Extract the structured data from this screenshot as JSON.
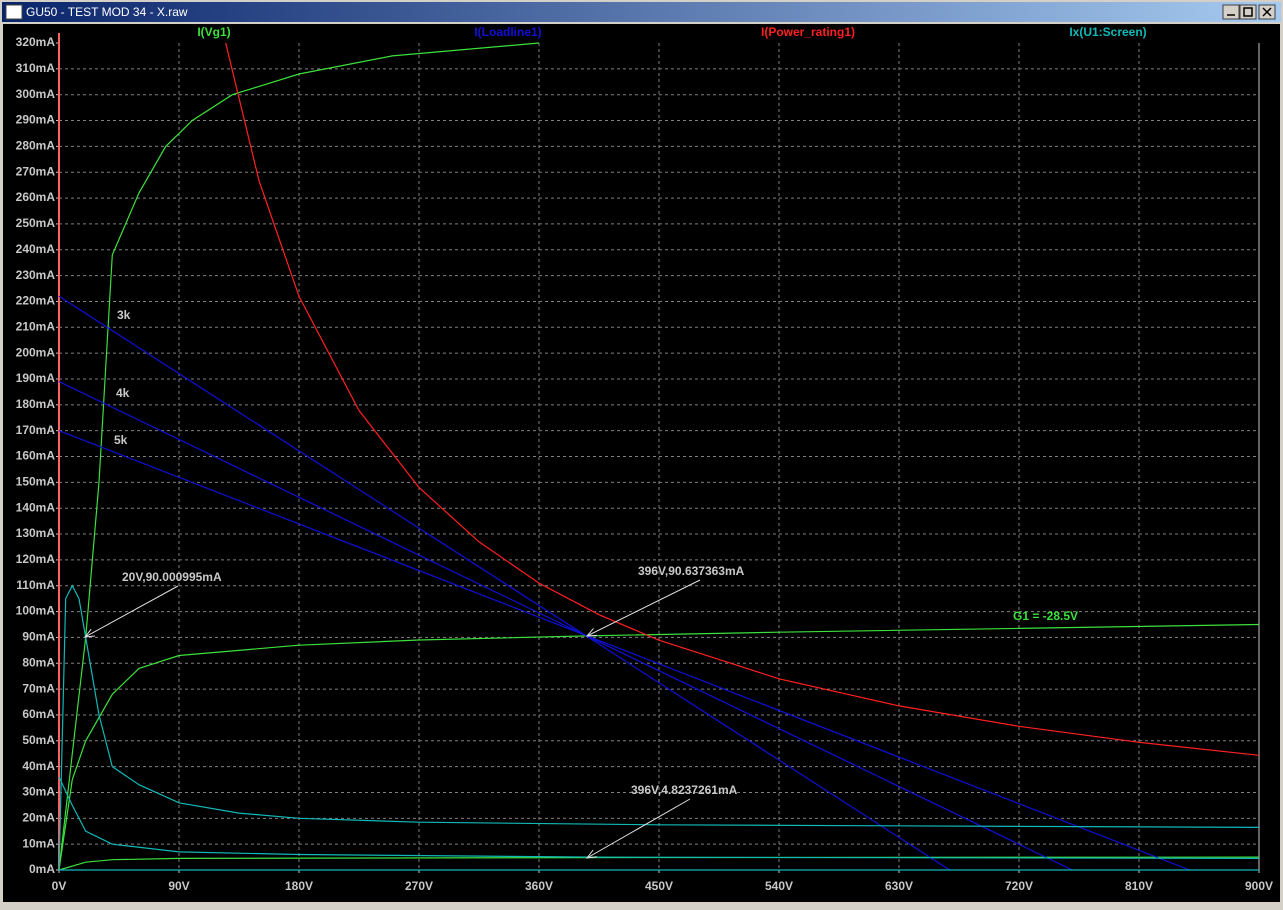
{
  "window": {
    "title": "GU50 - TEST MOD 34 - X.raw"
  },
  "chart_data": {
    "type": "line",
    "series": [
      {
        "name": "I(Vg1)",
        "color": "#3ce03c",
        "traces": [
          {
            "x": [
              0,
              10,
              20,
              30,
              40,
              60,
              80,
              100,
              130,
              180,
              250,
              360
            ],
            "values": [
              0,
              45,
              90,
              150,
              238,
              262,
              280,
              290,
              300,
              308,
              315,
              320
            ]
          },
          {
            "x": [
              0,
              10,
              20,
              40,
              60,
              90,
              180,
              270,
              396,
              540,
              720,
              900
            ],
            "values": [
              0,
              35,
              50,
              68,
              78,
              83,
              87,
              89,
              90.6,
              92,
              93.5,
              95
            ]
          },
          {
            "x": [
              0,
              20,
              40,
              90,
              396,
              900
            ],
            "values": [
              0,
              3,
              4,
              4.5,
              4.8,
              5
            ]
          }
        ]
      },
      {
        "name": "I(Loadline1)",
        "color": "#1010d8",
        "traces": [
          {
            "x": [
              0,
              668
            ],
            "values": [
              222,
              0
            ]
          },
          {
            "x": [
              0,
              760
            ],
            "values": [
              189,
              0
            ]
          },
          {
            "x": [
              0,
              848
            ],
            "values": [
              170,
              0
            ]
          }
        ]
      },
      {
        "name": "I(Power_rating1)",
        "color": "#ff2020",
        "traces": [
          {
            "x": [
              125,
              150,
              180,
              225,
              270,
              315,
              360,
              405,
              450,
              540,
              630,
              720,
              810,
              900
            ],
            "values": [
              320,
              266.7,
              222,
              177.8,
              148,
              127,
              111,
              98.8,
              88.9,
              74,
              63.5,
              55.6,
              49.4,
              44.4
            ]
          }
        ]
      },
      {
        "name": "Ix(U1:Screen)",
        "color": "#10b8b8",
        "traces": [
          {
            "x": [
              0,
              5,
              10,
              15,
              20,
              30,
              40,
              60,
              90,
              135,
              180,
              270,
              450,
              900
            ],
            "values": [
              0,
              105,
              110,
              105,
              90,
              60,
              40,
              33,
              26,
              22,
              20,
              18.5,
              17.5,
              16.5
            ]
          },
          {
            "x": [
              0,
              10,
              20,
              40,
              90,
              180,
              400,
              900
            ],
            "values": [
              36,
              25,
              15,
              10,
              7,
              6,
              5,
              4.5
            ]
          },
          {
            "x": [
              0,
              900
            ],
            "values": [
              0,
              0
            ]
          }
        ]
      }
    ],
    "annotations": [
      "3k",
      "4k",
      "5k",
      "20V,90.000995mA",
      "396V,90.637363mA",
      "396V,4.8237261mA",
      "G1 = -28.5V"
    ],
    "xlim": [
      0,
      900
    ],
    "xticks": [
      {
        "value": 0,
        "label": "0V"
      },
      {
        "value": 90,
        "label": "90V"
      },
      {
        "value": 180,
        "label": "180V"
      },
      {
        "value": 270,
        "label": "270V"
      },
      {
        "value": 360,
        "label": "360V"
      },
      {
        "value": 450,
        "label": "450V"
      },
      {
        "value": 540,
        "label": "540V"
      },
      {
        "value": 630,
        "label": "630V"
      },
      {
        "value": 720,
        "label": "720V"
      },
      {
        "value": 810,
        "label": "810V"
      },
      {
        "value": 900,
        "label": "900V"
      }
    ],
    "ylim": [
      0,
      320
    ],
    "yticks": [
      {
        "value": 0,
        "label": "0mA"
      },
      {
        "value": 10,
        "label": "10mA"
      },
      {
        "value": 20,
        "label": "20mA"
      },
      {
        "value": 30,
        "label": "30mA"
      },
      {
        "value": 40,
        "label": "40mA"
      },
      {
        "value": 50,
        "label": "50mA"
      },
      {
        "value": 60,
        "label": "60mA"
      },
      {
        "value": 70,
        "label": "70mA"
      },
      {
        "value": 80,
        "label": "80mA"
      },
      {
        "value": 90,
        "label": "90mA"
      },
      {
        "value": 100,
        "label": "100mA"
      },
      {
        "value": 110,
        "label": "110mA"
      },
      {
        "value": 120,
        "label": "120mA"
      },
      {
        "value": 130,
        "label": "130mA"
      },
      {
        "value": 140,
        "label": "140mA"
      },
      {
        "value": 150,
        "label": "150mA"
      },
      {
        "value": 160,
        "label": "160mA"
      },
      {
        "value": 170,
        "label": "170mA"
      },
      {
        "value": 180,
        "label": "180mA"
      },
      {
        "value": 190,
        "label": "190mA"
      },
      {
        "value": 200,
        "label": "200mA"
      },
      {
        "value": 210,
        "label": "210mA"
      },
      {
        "value": 220,
        "label": "220mA"
      },
      {
        "value": 230,
        "label": "230mA"
      },
      {
        "value": 240,
        "label": "240mA"
      },
      {
        "value": 250,
        "label": "250mA"
      },
      {
        "value": 260,
        "label": "260mA"
      },
      {
        "value": 270,
        "label": "270mA"
      },
      {
        "value": 280,
        "label": "280mA"
      },
      {
        "value": 290,
        "label": "290mA"
      },
      {
        "value": 300,
        "label": "300mA"
      },
      {
        "value": 310,
        "label": "310mA"
      },
      {
        "value": 320,
        "label": "320mA"
      }
    ],
    "grid": true
  }
}
